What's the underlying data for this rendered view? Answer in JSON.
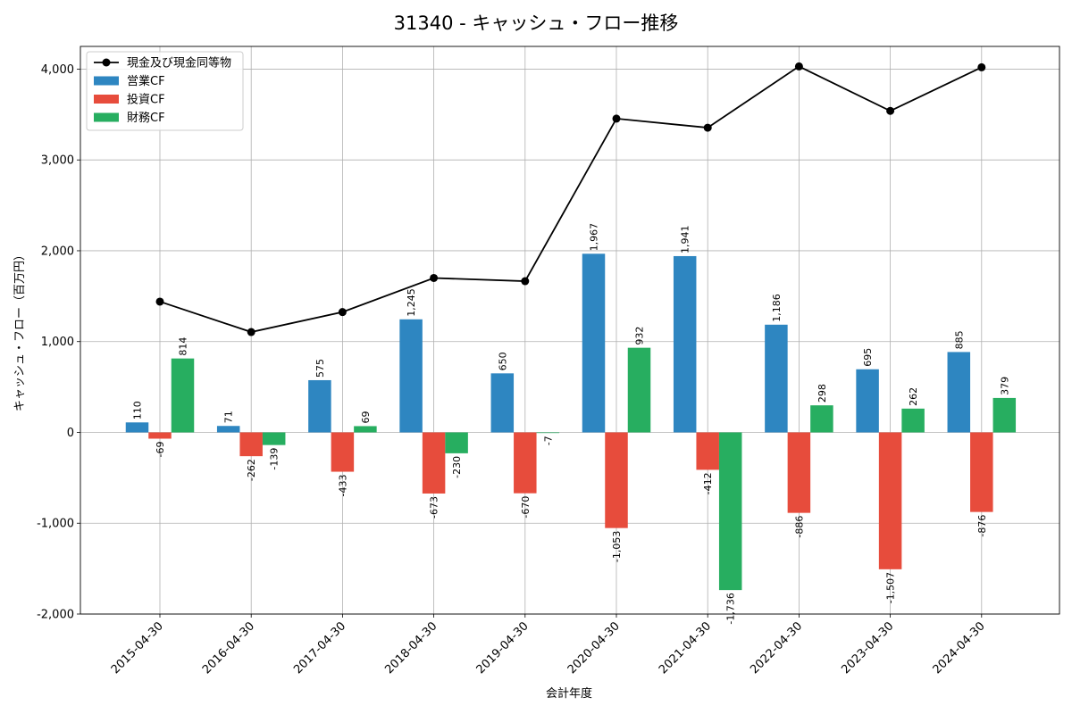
{
  "chart_data": {
    "type": "bar",
    "title": "31340 - キャッシュ・フロー推移",
    "xlabel": "会計年度",
    "ylabel": "キャッシュ・フロー（百万円）",
    "categories": [
      "2015-04-30",
      "2016-04-30",
      "2017-04-30",
      "2018-04-30",
      "2019-04-30",
      "2020-04-30",
      "2021-04-30",
      "2022-04-30",
      "2023-04-30",
      "2024-04-30"
    ],
    "ylim": [
      -2000,
      4250
    ],
    "yticks": [
      -2000,
      -1000,
      0,
      1000,
      2000,
      3000,
      4000
    ],
    "ytick_labels": [
      "-2,000",
      "-1,000",
      "0",
      "1,000",
      "2,000",
      "3,000",
      "4,000"
    ],
    "grid": true,
    "legend_position": "top-left",
    "series": [
      {
        "name": "営業CF",
        "kind": "bar",
        "color": "#2e86c1",
        "values": [
          110,
          71,
          575,
          1245,
          650,
          1967,
          1941,
          1186,
          695,
          885
        ],
        "labels": [
          "110",
          "71",
          "575",
          "1,245",
          "650",
          "1,967",
          "1,941",
          "1,186",
          "695",
          "885"
        ]
      },
      {
        "name": "投資CF",
        "kind": "bar",
        "color": "#e74c3c",
        "values": [
          -69,
          -262,
          -433,
          -673,
          -670,
          -1053,
          -412,
          -886,
          -1507,
          -876
        ],
        "labels": [
          "-69",
          "-262",
          "-433",
          "-673",
          "-670",
          "-1,053",
          "-412",
          "-886",
          "-1,507",
          "-876"
        ]
      },
      {
        "name": "財務CF",
        "kind": "bar",
        "color": "#27ae60",
        "values": [
          814,
          -139,
          69,
          -230,
          -7,
          932,
          -1736,
          298,
          262,
          379
        ],
        "labels": [
          "814",
          "-139",
          "69",
          "-230",
          "-7",
          "932",
          "-1,736",
          "298",
          "262",
          "379"
        ]
      },
      {
        "name": "現金及び現金同等物",
        "kind": "line",
        "color": "#000000",
        "values": [
          1440,
          1105,
          1325,
          1700,
          1665,
          3455,
          3355,
          4030,
          3540,
          4020
        ]
      }
    ],
    "legend_order": [
      "現金及び現金同等物",
      "営業CF",
      "投資CF",
      "財務CF"
    ]
  }
}
